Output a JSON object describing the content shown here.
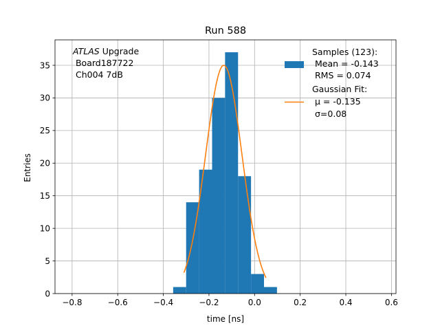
{
  "chart_data": {
    "type": "bar",
    "title": "Run 588",
    "xlabel": "time [ns]",
    "ylabel": "Entries",
    "xlim": [
      -0.875,
      0.62
    ],
    "ylim": [
      0,
      38.9
    ],
    "grid": true,
    "xticks": [
      -0.8,
      -0.6,
      -0.4,
      -0.2,
      0.0,
      0.2,
      0.4,
      0.6
    ],
    "xtick_labels": [
      "−0.8",
      "−0.6",
      "−0.4",
      "−0.2",
      "0.0",
      "0.2",
      "0.4",
      "0.6"
    ],
    "yticks": [
      0,
      5,
      10,
      15,
      20,
      25,
      30,
      35
    ],
    "ytick_labels": [
      "0",
      "5",
      "10",
      "15",
      "20",
      "25",
      "30",
      "35"
    ],
    "annotation": {
      "italic_part": "ATLAS",
      "line1_rest": " Upgrade",
      "line2": " Board187722",
      "line3": " Ch004 7dB"
    },
    "series": [
      {
        "name": "Samples (123):",
        "kind": "histogram",
        "color": "#1f77b4",
        "bin_width": 0.0569,
        "bin_edges_start": -0.357,
        "counts": [
          1,
          14,
          19,
          30,
          37,
          18,
          3,
          1
        ]
      },
      {
        "name": "Gaussian Fit:",
        "kind": "line",
        "color": "#ff7f0e",
        "mu": -0.135,
        "sigma": 0.08,
        "amplitude": 35,
        "x_range": [
          -0.31,
          0.05
        ]
      }
    ],
    "legend": {
      "position": "top-right",
      "entries": [
        {
          "lines": [
            "Samples (123):",
            " Mean = -0.143",
            " RMS = 0.074"
          ]
        },
        {
          "lines": [
            "Gaussian Fit:",
            "μ = -0.135",
            "σ=0.08"
          ]
        }
      ]
    }
  }
}
